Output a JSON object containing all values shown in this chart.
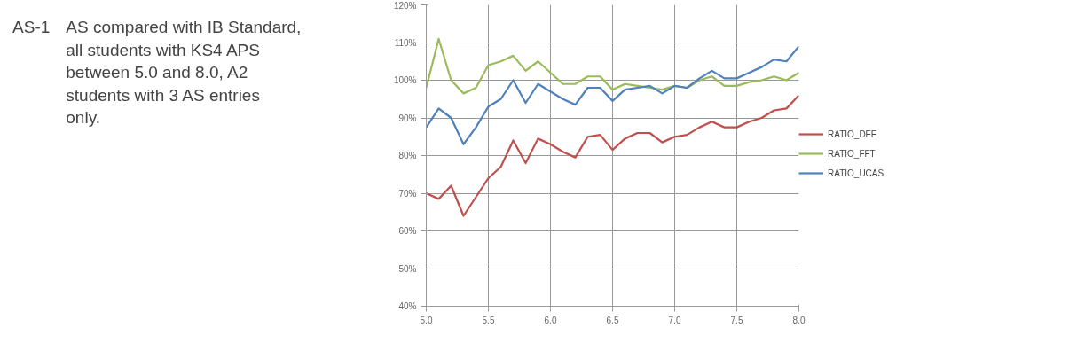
{
  "chart_data": [
    {
      "type": "other",
      "annotations": [
        "AS-1",
        "AS compared with IB Standard, all students with KS4 APS between 5.0 and 8.0, A2 students with 3 AS entries only."
      ]
    },
    {
      "type": "line",
      "x": [
        5.0,
        5.1,
        5.2,
        5.3,
        5.4,
        5.5,
        5.6,
        5.7,
        5.8,
        5.9,
        6.0,
        6.1,
        6.2,
        6.3,
        6.4,
        6.5,
        6.6,
        6.7,
        6.8,
        6.9,
        7.0,
        7.1,
        7.2,
        7.3,
        7.4,
        7.5,
        7.6,
        7.7,
        7.8,
        7.9,
        8.0
      ],
      "series": [
        {
          "name": "RATIO_DFE",
          "color": "#c0504d",
          "values": [
            70,
            68.5,
            72,
            64,
            69,
            74,
            77,
            84,
            78,
            84.5,
            83,
            81,
            79.5,
            85,
            85.5,
            81.5,
            84.5,
            86,
            86,
            83.5,
            85,
            85.5,
            87.5,
            89,
            87.5,
            87.5,
            89,
            90,
            92,
            92.5,
            96
          ]
        },
        {
          "name": "RATIO_FFT",
          "color": "#9bbb59",
          "values": [
            98,
            111,
            100,
            96.5,
            98,
            104,
            105,
            106.5,
            102.5,
            105,
            102,
            99,
            99,
            101,
            101,
            97.5,
            99,
            98.5,
            98,
            97.5,
            98.5,
            98,
            100,
            101,
            98.5,
            98.5,
            99.5,
            100,
            101,
            100,
            102
          ]
        },
        {
          "name": "RATIO_UCAS",
          "color": "#4f81bd",
          "values": [
            87.5,
            92.5,
            90,
            83,
            87.5,
            93,
            95,
            100,
            94,
            99,
            97,
            95,
            93.5,
            98,
            98,
            94.5,
            97.5,
            98,
            98.5,
            96.5,
            98.5,
            98,
            100.5,
            102.5,
            100.5,
            100.5,
            102,
            103.5,
            105.5,
            105,
            109
          ]
        }
      ],
      "xlim": [
        5.0,
        8.0
      ],
      "xticks": [
        {
          "value": 5.0,
          "label": "5.0"
        },
        {
          "value": 5.5,
          "label": "5.5"
        },
        {
          "value": 6.0,
          "label": "6.0"
        },
        {
          "value": 6.5,
          "label": "6.5"
        },
        {
          "value": 7.0,
          "label": "7.0"
        },
        {
          "value": 7.5,
          "label": "7.5"
        },
        {
          "value": 8.0,
          "label": "8.0"
        }
      ],
      "ylim": [
        40,
        120
      ],
      "yticks": [
        {
          "value": 40,
          "label": "40%"
        },
        {
          "value": 50,
          "label": "50%"
        },
        {
          "value": 60,
          "label": "60%"
        },
        {
          "value": 70,
          "label": "70%"
        },
        {
          "value": 80,
          "label": "80%"
        },
        {
          "value": 90,
          "label": "90%"
        },
        {
          "value": 100,
          "label": "100%"
        },
        {
          "value": 110,
          "label": "110%"
        },
        {
          "value": 120,
          "label": "120%"
        }
      ],
      "grid": true,
      "legend": "right",
      "marker": "none",
      "line_style": "solid"
    }
  ]
}
